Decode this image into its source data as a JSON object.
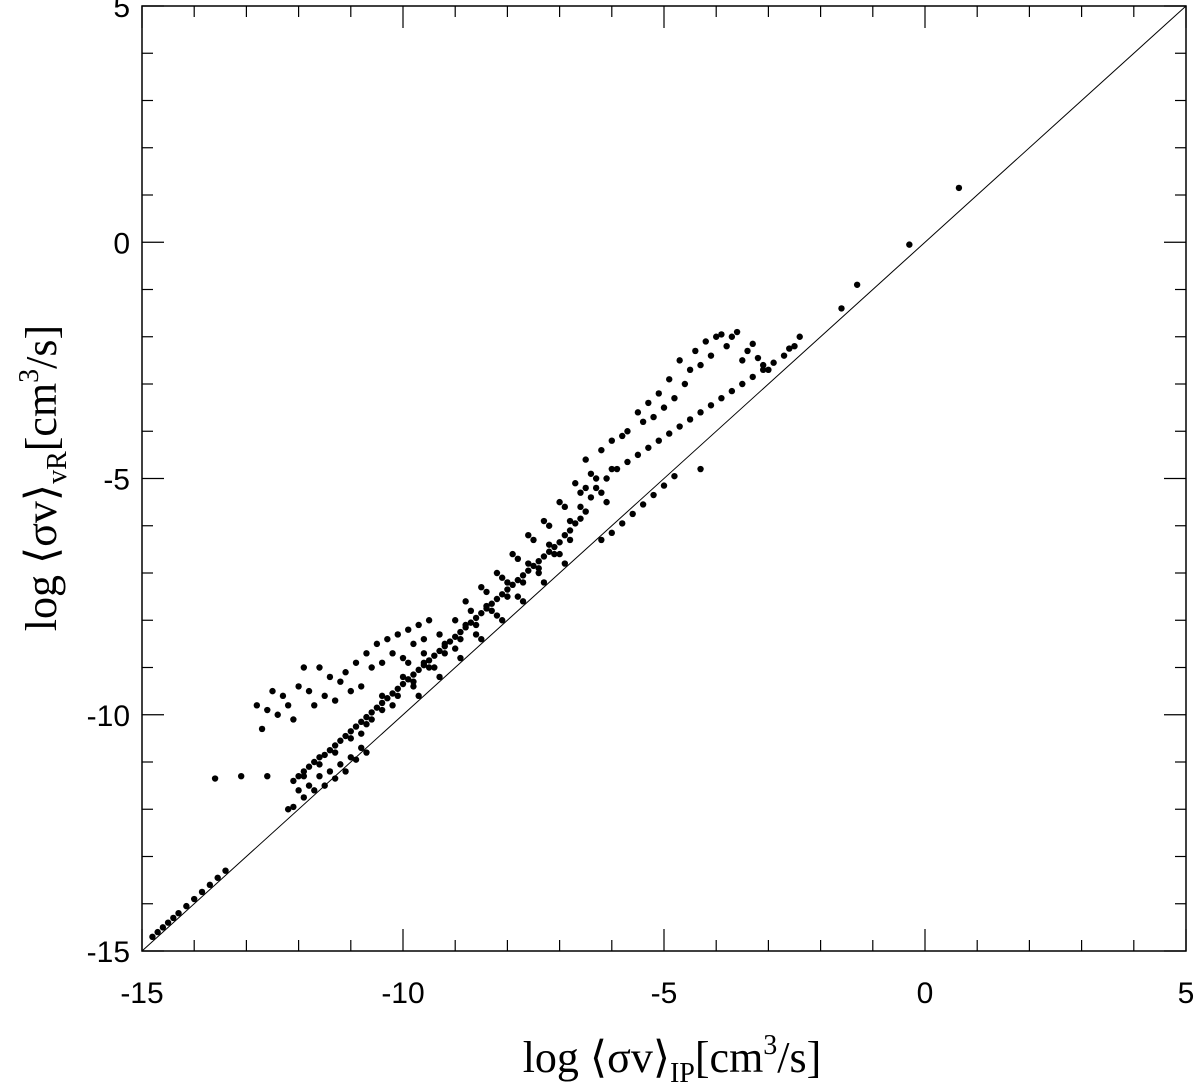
{
  "chart_data": {
    "type": "scatter",
    "title": "",
    "xlabel_parts": {
      "main": "log ⟨σv⟩",
      "sub": "IP",
      "unit": "[cm",
      "sup": "3",
      "unit_end": "/s]"
    },
    "ylabel_parts": {
      "main": "log ⟨σv⟩",
      "sub": "vR",
      "unit": "[cm",
      "sup": "3",
      "unit_end": "/s]"
    },
    "xlim": [
      -15,
      5
    ],
    "ylim": [
      -15,
      5
    ],
    "xticks": [
      -15,
      -10,
      -5,
      0,
      5
    ],
    "yticks": [
      -15,
      -10,
      -5,
      0,
      5
    ],
    "minor_step": 1,
    "grid": false,
    "reference_line": {
      "from": [
        -15,
        -15
      ],
      "to": [
        5,
        5
      ]
    },
    "series": [
      {
        "points": [
          [
            -14.8,
            -14.7
          ],
          [
            -14.7,
            -14.6
          ],
          [
            -14.6,
            -14.5
          ],
          [
            -14.5,
            -14.4
          ],
          [
            -14.4,
            -14.3
          ],
          [
            -14.3,
            -14.2
          ],
          [
            -14.15,
            -14.05
          ],
          [
            -14.0,
            -13.9
          ],
          [
            -13.85,
            -13.75
          ],
          [
            -13.7,
            -13.6
          ],
          [
            -13.55,
            -13.45
          ],
          [
            -13.4,
            -13.3
          ],
          [
            -13.6,
            -11.35
          ],
          [
            -13.1,
            -11.3
          ],
          [
            -12.6,
            -11.3
          ],
          [
            -12.8,
            -9.8
          ],
          [
            -12.7,
            -10.3
          ],
          [
            -12.6,
            -9.9
          ],
          [
            -12.5,
            -9.5
          ],
          [
            -12.4,
            -10.0
          ],
          [
            -12.3,
            -9.6
          ],
          [
            -12.2,
            -9.8
          ],
          [
            -12.1,
            -10.1
          ],
          [
            -12.0,
            -9.4
          ],
          [
            -11.9,
            -9.0
          ],
          [
            -11.8,
            -9.5
          ],
          [
            -11.7,
            -9.8
          ],
          [
            -11.6,
            -9.0
          ],
          [
            -11.5,
            -9.6
          ],
          [
            -11.4,
            -9.2
          ],
          [
            -11.3,
            -9.7
          ],
          [
            -11.2,
            -9.3
          ],
          [
            -11.1,
            -9.1
          ],
          [
            -11.0,
            -9.5
          ],
          [
            -10.9,
            -8.9
          ],
          [
            -10.8,
            -9.4
          ],
          [
            -10.7,
            -8.7
          ],
          [
            -10.6,
            -9.0
          ],
          [
            -10.5,
            -8.5
          ],
          [
            -10.4,
            -8.9
          ],
          [
            -10.3,
            -8.4
          ],
          [
            -10.2,
            -8.7
          ],
          [
            -10.1,
            -8.3
          ],
          [
            -10.0,
            -8.8
          ],
          [
            -9.9,
            -8.2
          ],
          [
            -9.8,
            -8.5
          ],
          [
            -9.7,
            -8.1
          ],
          [
            -9.6,
            -8.4
          ],
          [
            -9.5,
            -8.0
          ],
          [
            -12.2,
            -12.0
          ],
          [
            -12.1,
            -11.95
          ],
          [
            -12.0,
            -11.6
          ],
          [
            -11.9,
            -11.75
          ],
          [
            -11.8,
            -11.5
          ],
          [
            -11.7,
            -11.6
          ],
          [
            -11.6,
            -11.3
          ],
          [
            -11.5,
            -11.5
          ],
          [
            -11.4,
            -11.2
          ],
          [
            -11.3,
            -11.35
          ],
          [
            -11.2,
            -11.05
          ],
          [
            -11.1,
            -11.2
          ],
          [
            -11.0,
            -10.9
          ],
          [
            -10.9,
            -10.95
          ],
          [
            -10.8,
            -10.7
          ],
          [
            -10.7,
            -10.8
          ],
          [
            -12.1,
            -11.4
          ],
          [
            -12.0,
            -11.3
          ],
          [
            -11.9,
            -11.2
          ],
          [
            -11.8,
            -11.1
          ],
          [
            -11.7,
            -11.0
          ],
          [
            -11.6,
            -10.9
          ],
          [
            -11.5,
            -10.85
          ],
          [
            -11.4,
            -10.75
          ],
          [
            -11.3,
            -10.65
          ],
          [
            -11.2,
            -10.55
          ],
          [
            -11.1,
            -10.45
          ],
          [
            -11.0,
            -10.35
          ],
          [
            -10.9,
            -10.25
          ],
          [
            -10.8,
            -10.15
          ],
          [
            -10.7,
            -10.05
          ],
          [
            -10.6,
            -9.95
          ],
          [
            -10.5,
            -9.85
          ],
          [
            -10.4,
            -9.75
          ],
          [
            -10.3,
            -9.65
          ],
          [
            -10.2,
            -9.55
          ],
          [
            -10.1,
            -9.45
          ],
          [
            -10.0,
            -9.35
          ],
          [
            -9.9,
            -9.25
          ],
          [
            -9.8,
            -9.15
          ],
          [
            -9.7,
            -9.05
          ],
          [
            -9.6,
            -8.95
          ],
          [
            -9.5,
            -8.85
          ],
          [
            -9.4,
            -8.75
          ],
          [
            -9.3,
            -8.65
          ],
          [
            -9.2,
            -8.55
          ],
          [
            -9.1,
            -8.45
          ],
          [
            -9.0,
            -8.35
          ],
          [
            -8.9,
            -8.25
          ],
          [
            -8.8,
            -8.15
          ],
          [
            -8.7,
            -8.05
          ],
          [
            -8.6,
            -7.95
          ],
          [
            -8.5,
            -7.85
          ],
          [
            -8.4,
            -7.75
          ],
          [
            -8.3,
            -7.65
          ],
          [
            -8.2,
            -7.55
          ],
          [
            -8.1,
            -7.45
          ],
          [
            -8.0,
            -7.35
          ],
          [
            -7.9,
            -7.25
          ],
          [
            -7.8,
            -7.15
          ],
          [
            -7.7,
            -7.05
          ],
          [
            -7.6,
            -6.95
          ],
          [
            -7.5,
            -6.85
          ],
          [
            -7.4,
            -6.75
          ],
          [
            -7.3,
            -6.65
          ],
          [
            -7.2,
            -6.55
          ],
          [
            -7.1,
            -6.45
          ],
          [
            -7.0,
            -6.35
          ],
          [
            -6.9,
            -6.2
          ],
          [
            -6.8,
            -6.1
          ],
          [
            -6.7,
            -5.95
          ],
          [
            -6.6,
            -5.85
          ],
          [
            -6.5,
            -5.7
          ],
          [
            -11.9,
            -11.3
          ],
          [
            -11.6,
            -11.05
          ],
          [
            -11.3,
            -10.8
          ],
          [
            -11.0,
            -10.5
          ],
          [
            -10.7,
            -10.2
          ],
          [
            -10.4,
            -9.9
          ],
          [
            -10.1,
            -9.6
          ],
          [
            -9.8,
            -9.3
          ],
          [
            -9.5,
            -9.0
          ],
          [
            -9.2,
            -8.7
          ],
          [
            -8.9,
            -8.4
          ],
          [
            -8.6,
            -8.1
          ],
          [
            -8.3,
            -7.8
          ],
          [
            -8.0,
            -7.5
          ],
          [
            -7.7,
            -7.2
          ],
          [
            -7.4,
            -6.9
          ],
          [
            -7.1,
            -6.6
          ],
          [
            -6.8,
            -6.3
          ],
          [
            -10.8,
            -10.4
          ],
          [
            -10.6,
            -10.1
          ],
          [
            -10.4,
            -9.6
          ],
          [
            -10.2,
            -9.8
          ],
          [
            -10.0,
            -9.2
          ],
          [
            -9.8,
            -9.4
          ],
          [
            -9.6,
            -8.9
          ],
          [
            -9.4,
            -9.0
          ],
          [
            -9.2,
            -8.5
          ],
          [
            -9.0,
            -8.6
          ],
          [
            -8.8,
            -8.1
          ],
          [
            -8.6,
            -8.3
          ],
          [
            -8.4,
            -7.7
          ],
          [
            -8.2,
            -7.9
          ],
          [
            -8.0,
            -7.2
          ],
          [
            -7.8,
            -7.5
          ],
          [
            -7.6,
            -6.8
          ],
          [
            -7.4,
            -7.0
          ],
          [
            -7.2,
            -6.4
          ],
          [
            -7.0,
            -6.6
          ],
          [
            -6.8,
            -5.9
          ],
          [
            -6.6,
            -5.6
          ],
          [
            -6.5,
            -5.2
          ],
          [
            -6.4,
            -5.4
          ],
          [
            -6.3,
            -5.0
          ],
          [
            -6.2,
            -5.3
          ],
          [
            -6.1,
            -5.5
          ],
          [
            -6.0,
            -4.8
          ],
          [
            -9.9,
            -8.9
          ],
          [
            -9.6,
            -8.7
          ],
          [
            -9.3,
            -8.3
          ],
          [
            -9.0,
            -8.0
          ],
          [
            -8.7,
            -7.8
          ],
          [
            -8.4,
            -7.4
          ],
          [
            -8.1,
            -7.1
          ],
          [
            -7.8,
            -6.7
          ],
          [
            -7.5,
            -6.3
          ],
          [
            -7.2,
            -6.0
          ],
          [
            -6.9,
            -5.6
          ],
          [
            -6.6,
            -5.3
          ],
          [
            -9.7,
            -9.6
          ],
          [
            -9.3,
            -9.2
          ],
          [
            -8.9,
            -8.8
          ],
          [
            -8.5,
            -8.4
          ],
          [
            -8.1,
            -8.0
          ],
          [
            -7.7,
            -7.6
          ],
          [
            -7.3,
            -7.2
          ],
          [
            -6.9,
            -6.8
          ],
          [
            -8.8,
            -7.6
          ],
          [
            -8.5,
            -7.3
          ],
          [
            -8.2,
            -7.0
          ],
          [
            -7.9,
            -6.6
          ],
          [
            -7.6,
            -6.2
          ],
          [
            -7.3,
            -5.9
          ],
          [
            -7.0,
            -5.5
          ],
          [
            -6.7,
            -5.1
          ],
          [
            -6.4,
            -4.9
          ],
          [
            -6.5,
            -4.6
          ],
          [
            -6.2,
            -4.4
          ],
          [
            -6.0,
            -4.2
          ],
          [
            -5.8,
            -4.1
          ],
          [
            -5.7,
            -4.0
          ],
          [
            -5.5,
            -3.6
          ],
          [
            -5.4,
            -3.8
          ],
          [
            -5.3,
            -3.4
          ],
          [
            -5.2,
            -3.7
          ],
          [
            -5.1,
            -3.2
          ],
          [
            -5.0,
            -3.5
          ],
          [
            -4.9,
            -2.9
          ],
          [
            -4.8,
            -3.3
          ],
          [
            -4.7,
            -2.5
          ],
          [
            -4.6,
            -3.0
          ],
          [
            -4.5,
            -2.7
          ],
          [
            -4.4,
            -2.3
          ],
          [
            -4.3,
            -2.6
          ],
          [
            -4.2,
            -2.1
          ],
          [
            -4.1,
            -2.4
          ],
          [
            -4.0,
            -2.0
          ],
          [
            -3.9,
            -1.95
          ],
          [
            -3.8,
            -2.2
          ],
          [
            -3.7,
            -2.0
          ],
          [
            -3.6,
            -1.9
          ],
          [
            -3.5,
            -2.5
          ],
          [
            -3.4,
            -2.3
          ],
          [
            -3.3,
            -2.15
          ],
          [
            -3.2,
            -2.45
          ],
          [
            -3.1,
            -2.6
          ],
          [
            -3.0,
            -2.7
          ],
          [
            -6.2,
            -6.3
          ],
          [
            -6.0,
            -6.15
          ],
          [
            -5.8,
            -5.95
          ],
          [
            -5.6,
            -5.75
          ],
          [
            -5.4,
            -5.55
          ],
          [
            -5.2,
            -5.35
          ],
          [
            -5.0,
            -5.15
          ],
          [
            -4.8,
            -4.95
          ],
          [
            -6.3,
            -5.2
          ],
          [
            -6.1,
            -5.0
          ],
          [
            -5.9,
            -4.8
          ],
          [
            -5.7,
            -4.65
          ],
          [
            -5.5,
            -4.5
          ],
          [
            -5.3,
            -4.35
          ],
          [
            -5.1,
            -4.2
          ],
          [
            -4.9,
            -4.05
          ],
          [
            -4.7,
            -3.9
          ],
          [
            -4.5,
            -3.75
          ],
          [
            -4.3,
            -3.6
          ],
          [
            -4.1,
            -3.45
          ],
          [
            -3.9,
            -3.3
          ],
          [
            -3.7,
            -3.15
          ],
          [
            -3.5,
            -3.0
          ],
          [
            -3.3,
            -2.85
          ],
          [
            -3.1,
            -2.7
          ],
          [
            -2.9,
            -2.55
          ],
          [
            -2.7,
            -2.4
          ],
          [
            -2.5,
            -2.2
          ],
          [
            -4.3,
            -4.8
          ],
          [
            -2.6,
            -2.25
          ],
          [
            -2.4,
            -2.0
          ],
          [
            -1.6,
            -1.4
          ],
          [
            -1.3,
            -0.9
          ],
          [
            -0.3,
            -0.05
          ],
          [
            0.65,
            1.15
          ]
        ]
      }
    ]
  }
}
